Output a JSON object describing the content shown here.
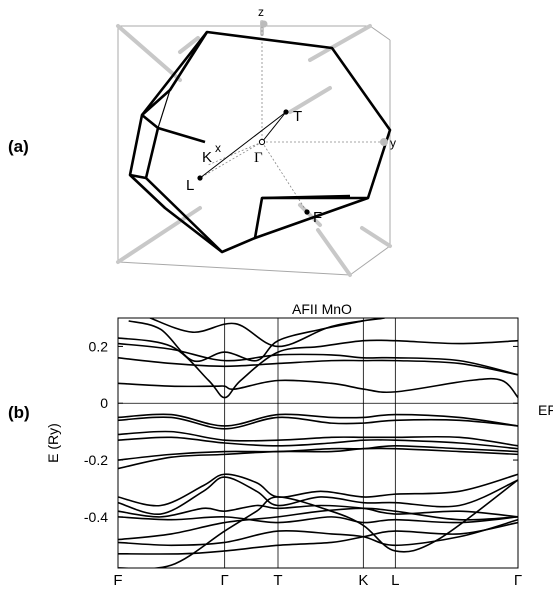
{
  "figure": {
    "panel_a_label": "(a)",
    "panel_b_label": "(b)"
  },
  "brillouin_zone": {
    "axes": {
      "x": "x",
      "y": "y",
      "z": "z"
    },
    "points": {
      "T": "T",
      "K": "K",
      "Gamma": "Γ",
      "L": "L",
      "F": "F"
    }
  },
  "chart_data": {
    "type": "line",
    "title": "AFII MnO",
    "ylabel": "E (Ry)",
    "xlabel": "",
    "ylim": [
      -0.58,
      0.3
    ],
    "yticks": [
      0.2,
      0,
      -0.2,
      -0.4
    ],
    "k_points": [
      {
        "label": "F",
        "x": 0.0
      },
      {
        "label": "Γ",
        "x": 1.0
      },
      {
        "label": "T",
        "x": 1.5
      },
      {
        "label": "K",
        "x": 2.3
      },
      {
        "label": "L",
        "x": 2.6
      },
      {
        "label": "Γ",
        "x": 3.75
      }
    ],
    "fermi_label": "EF",
    "fermi_level": 0,
    "grid": false,
    "series": [
      {
        "x": [
          0,
          0.5,
          0.85,
          1.0,
          1.15,
          1.5,
          1.9,
          2.3,
          2.6,
          3.2,
          3.75
        ],
        "y": [
          0.23,
          0.2,
          0.08,
          0.02,
          0.08,
          0.18,
          0.2,
          0.22,
          0.22,
          0.21,
          0.22
        ]
      },
      {
        "x": [
          0,
          0.5,
          1.0,
          1.5,
          2.0,
          2.3,
          2.6,
          3.2,
          3.75
        ],
        "y": [
          0.21,
          0.19,
          0.15,
          0.17,
          0.17,
          0.16,
          0.16,
          0.15,
          0.1
        ]
      },
      {
        "x": [
          0,
          0.5,
          1.0,
          1.5,
          2.0,
          2.3,
          2.6,
          3.2,
          3.75
        ],
        "y": [
          0.16,
          0.14,
          0.13,
          0.14,
          0.15,
          0.15,
          0.15,
          0.14,
          0.1
        ]
      },
      {
        "x": [
          0,
          0.5,
          0.9,
          1.0,
          1.1,
          1.5,
          2.0,
          2.3,
          2.6,
          3.3,
          3.6,
          3.75
        ],
        "y": [
          0.07,
          0.06,
          0.06,
          0.06,
          0.05,
          0.08,
          0.07,
          0.05,
          0.04,
          0.08,
          0.08,
          0.02
        ]
      },
      {
        "x": [
          0.1,
          0.4,
          0.7,
          1.0,
          1.3,
          1.5,
          1.9,
          2.3
        ],
        "y": [
          0.29,
          0.26,
          0.15,
          0.18,
          0.15,
          0.22,
          0.26,
          0.29
        ]
      },
      {
        "x": [
          0.3,
          0.7,
          1.1,
          1.5,
          2.0,
          2.5
        ],
        "y": [
          0.3,
          0.25,
          0.28,
          0.2,
          0.27,
          0.3
        ]
      },
      {
        "x": [
          0,
          0.5,
          1.0,
          1.5,
          2.0,
          2.3,
          2.6,
          3.2,
          3.75
        ],
        "y": [
          -0.05,
          -0.04,
          -0.08,
          -0.04,
          -0.05,
          -0.05,
          -0.04,
          -0.05,
          -0.08
        ]
      },
      {
        "x": [
          0,
          0.5,
          1.0,
          1.5,
          2.0,
          2.3,
          2.6,
          3.2,
          3.75
        ],
        "y": [
          -0.06,
          -0.05,
          -0.09,
          -0.05,
          -0.07,
          -0.07,
          -0.06,
          -0.06,
          -0.08
        ]
      },
      {
        "x": [
          0,
          0.5,
          1.0,
          1.5,
          2.0,
          2.3,
          2.6,
          3.2,
          3.75
        ],
        "y": [
          -0.11,
          -0.1,
          -0.13,
          -0.13,
          -0.12,
          -0.12,
          -0.12,
          -0.12,
          -0.15
        ]
      },
      {
        "x": [
          0,
          0.5,
          1.0,
          1.5,
          2.0,
          2.3,
          2.6,
          3.2,
          3.75
        ],
        "y": [
          -0.13,
          -0.12,
          -0.14,
          -0.15,
          -0.14,
          -0.13,
          -0.13,
          -0.14,
          -0.16
        ]
      },
      {
        "x": [
          0,
          0.5,
          1.0,
          1.5,
          2.0,
          2.3,
          2.6,
          3.2,
          3.75
        ],
        "y": [
          -0.2,
          -0.18,
          -0.17,
          -0.17,
          -0.16,
          -0.16,
          -0.15,
          -0.16,
          -0.17
        ]
      },
      {
        "x": [
          0,
          0.5,
          1.0,
          1.5,
          2.0,
          2.3,
          2.6,
          3.2,
          3.75
        ],
        "y": [
          -0.23,
          -0.19,
          -0.18,
          -0.17,
          -0.17,
          -0.16,
          -0.16,
          -0.17,
          -0.18
        ]
      },
      {
        "x": [
          0,
          0.4,
          0.8,
          1.0,
          1.3,
          1.5,
          1.9,
          2.3,
          2.6,
          3.2,
          3.75
        ],
        "y": [
          -0.33,
          -0.36,
          -0.29,
          -0.25,
          -0.28,
          -0.33,
          -0.31,
          -0.33,
          -0.32,
          -0.31,
          -0.25
        ]
      },
      {
        "x": [
          0,
          0.4,
          0.8,
          1.0,
          1.3,
          1.5,
          1.9,
          2.3,
          2.6,
          3.2,
          3.75
        ],
        "y": [
          -0.35,
          -0.39,
          -0.31,
          -0.26,
          -0.31,
          -0.36,
          -0.33,
          -0.35,
          -0.35,
          -0.36,
          -0.27
        ]
      },
      {
        "x": [
          0,
          0.4,
          0.8,
          1.0,
          1.3,
          1.5,
          1.9,
          2.3,
          2.6,
          3.2,
          3.75
        ],
        "y": [
          -0.38,
          -0.4,
          -0.37,
          -0.38,
          -0.36,
          -0.37,
          -0.36,
          -0.37,
          -0.39,
          -0.38,
          -0.4
        ]
      },
      {
        "x": [
          0,
          0.5,
          1.0,
          1.5,
          2.0,
          2.3,
          2.6,
          3.2,
          3.75
        ],
        "y": [
          -0.4,
          -0.41,
          -0.4,
          -0.42,
          -0.4,
          -0.42,
          -0.41,
          -0.42,
          -0.4
        ]
      },
      {
        "x": [
          0,
          0.5,
          1.0,
          1.5,
          1.9,
          2.3,
          2.6,
          3.2,
          3.75
        ],
        "y": [
          -0.48,
          -0.46,
          -0.42,
          -0.4,
          -0.38,
          -0.37,
          -0.38,
          -0.41,
          -0.4
        ]
      },
      {
        "x": [
          0,
          0.5,
          1.0,
          1.5,
          2.0,
          2.3,
          2.6,
          3.2,
          3.75
        ],
        "y": [
          -0.49,
          -0.5,
          -0.49,
          -0.45,
          -0.46,
          -0.47,
          -0.5,
          -0.47,
          -0.41
        ]
      },
      {
        "x": [
          0,
          0.6,
          1.0,
          1.5,
          2.0,
          2.3,
          2.6,
          3.2,
          3.75
        ],
        "y": [
          -0.53,
          -0.53,
          -0.52,
          -0.5,
          -0.49,
          -0.47,
          -0.45,
          -0.46,
          -0.42
        ]
      },
      {
        "x": [
          0,
          0.5,
          1.0,
          1.3,
          1.5,
          2.0,
          2.3,
          2.6,
          3.0,
          3.75
        ],
        "y": [
          -0.58,
          -0.57,
          -0.45,
          -0.38,
          -0.33,
          -0.38,
          -0.43,
          -0.52,
          -0.48,
          -0.27
        ]
      }
    ]
  }
}
